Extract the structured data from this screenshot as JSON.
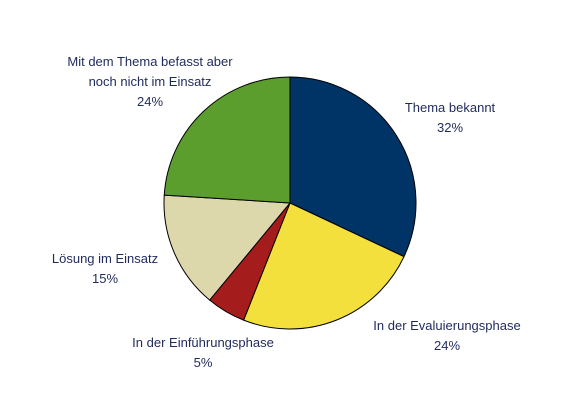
{
  "chart_data": {
    "type": "pie",
    "start_angle_deg": 0,
    "direction": "clockwise",
    "slices": [
      {
        "label_lines": [
          "Thema bekannt"
        ],
        "value": 32,
        "value_label": "32%",
        "color": "#003366"
      },
      {
        "label_lines": [
          "In der Evaluierungsphase"
        ],
        "value": 24,
        "value_label": "24%",
        "color": "#f4e03c"
      },
      {
        "label_lines": [
          "In der Einführungsphase"
        ],
        "value": 5,
        "value_label": "5%",
        "color": "#a51c1c"
      },
      {
        "label_lines": [
          "Lösung im Einsatz"
        ],
        "value": 15,
        "value_label": "15%",
        "color": "#ddd8ac"
      },
      {
        "label_lines": [
          "Mit dem Thema befasst aber",
          "noch nicht im Einsatz"
        ],
        "value": 24,
        "value_label": "24%",
        "color": "#5b9e2e"
      }
    ]
  }
}
